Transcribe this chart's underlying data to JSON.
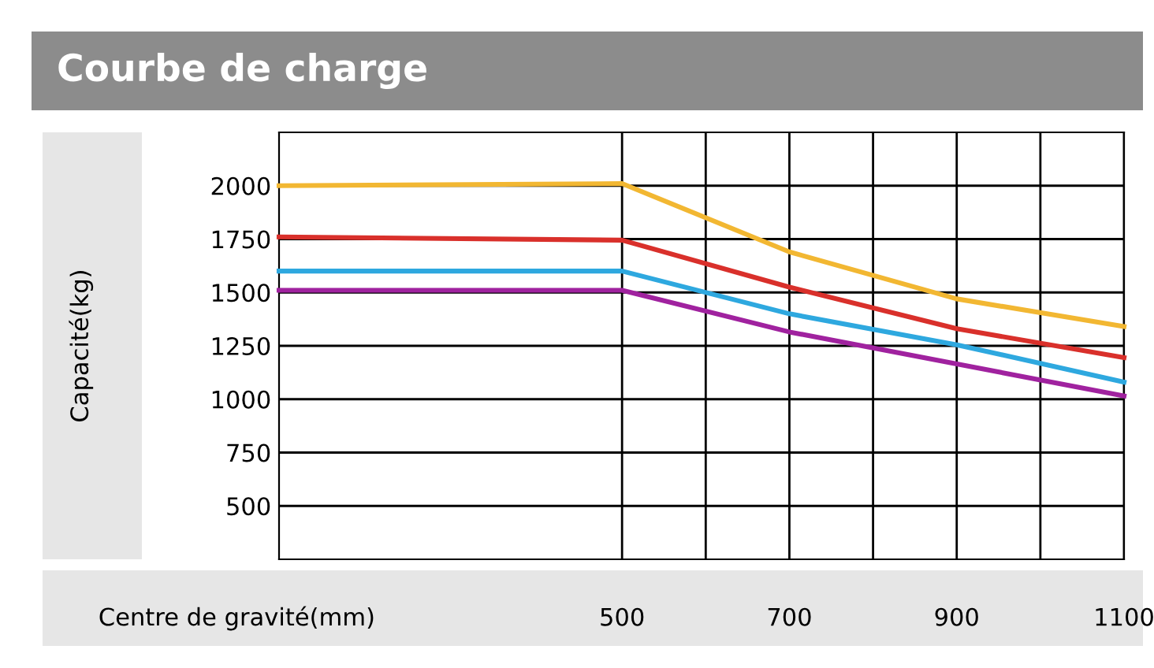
{
  "chart_data": {
    "type": "line",
    "title": "Courbe de charge",
    "xlabel": "Centre de gravité(mm)",
    "ylabel": "Capacité(kg)",
    "x": [
      90,
      500,
      700,
      900,
      1100
    ],
    "series": [
      {
        "color": "#f2b732",
        "values": [
          2000,
          2010,
          1690,
          1470,
          1340
        ]
      },
      {
        "color": "#d9302b",
        "values": [
          1760,
          1745,
          1525,
          1330,
          1195
        ]
      },
      {
        "color": "#2ea8df",
        "values": [
          1600,
          1600,
          1400,
          1255,
          1080
        ]
      },
      {
        "color": "#a0229f",
        "values": [
          1510,
          1510,
          1315,
          1165,
          1015
        ]
      }
    ],
    "xlim": [
      90,
      1100
    ],
    "xticks": [
      500,
      {
        "value": 600,
        "label": null
      },
      700,
      {
        "value": 800,
        "label": null
      },
      900,
      {
        "value": 1000,
        "label": null
      },
      1100
    ],
    "ylim": [
      250,
      2250
    ],
    "yticks": [
      500,
      750,
      1000,
      1250,
      1500,
      1750,
      2000
    ],
    "grid": true,
    "legend": false,
    "marker": "none",
    "line_style": "solid"
  }
}
